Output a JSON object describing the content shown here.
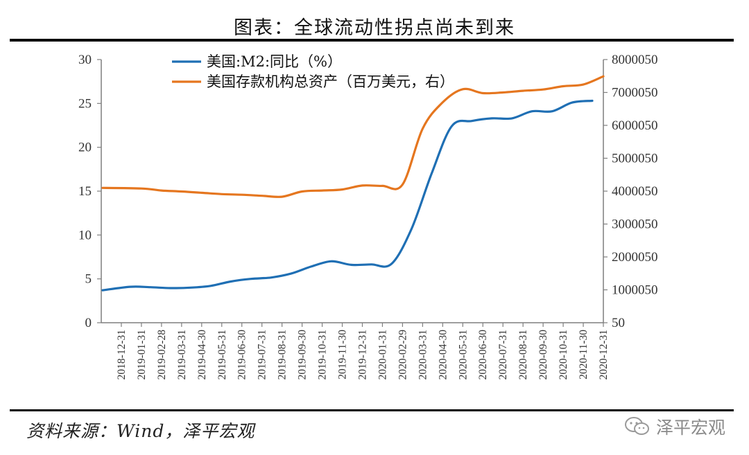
{
  "title": "图表：全球流动性拐点尚未到来",
  "source": "资料来源：Wind，泽平宏观",
  "brand": {
    "label": "泽平宏观",
    "icon": "wechat-icon"
  },
  "colors": {
    "m2": "#1f6fb4",
    "assets": "#e5761f",
    "axis": "#7f7f7f"
  },
  "chart_data": {
    "type": "line",
    "title": "全球流动性拐点尚未到来",
    "x": [
      "2018-12-31",
      "2019-01-31",
      "2019-02-28",
      "2019-03-31",
      "2019-04-30",
      "2019-05-31",
      "2019-06-30",
      "2019-07-31",
      "2019-08-31",
      "2019-09-30",
      "2019-10-31",
      "2019-11-30",
      "2019-12-31",
      "2020-01-31",
      "2020-02-29",
      "2020-03-31",
      "2020-04-30",
      "2020-05-31",
      "2020-06-30",
      "2020-07-31",
      "2020-08-31",
      "2020-09-30",
      "2020-10-31",
      "2020-11-30",
      "2020-12-31"
    ],
    "y_left": {
      "ylim": [
        0,
        30
      ],
      "ticks": [
        0,
        5,
        10,
        15,
        20,
        25,
        30
      ]
    },
    "y_right": {
      "ylim": [
        50,
        8000050
      ],
      "ticks": [
        50,
        1000050,
        2000050,
        3000050,
        4000050,
        5000050,
        6000050,
        7000050,
        8000050
      ]
    },
    "legend_position": "top-left",
    "grid": false,
    "series": [
      {
        "name": "美国:M2:同比（%）",
        "axis": "left",
        "color": "#1f6fb4",
        "values": [
          3.7,
          4.1,
          4.05,
          3.95,
          4.0,
          4.2,
          4.7,
          5.0,
          5.15,
          5.6,
          6.4,
          7.0,
          6.6,
          6.65,
          6.7,
          10.7,
          17.0,
          22.4,
          23.0,
          23.3,
          23.3,
          24.1,
          24.1,
          25.1,
          25.3
        ]
      },
      {
        "name": "美国存款机构总资产（百万美元，右）",
        "axis": "right",
        "color": "#e5761f",
        "values": [
          4100000,
          4080000,
          4020000,
          3990000,
          3950000,
          3910000,
          3890000,
          3860000,
          3830000,
          3990000,
          4020000,
          4050000,
          4170000,
          4160000,
          4200000,
          5900000,
          6700000,
          7100000,
          6980000,
          7000000,
          7050000,
          7090000,
          7190000,
          7240000,
          7490000
        ]
      }
    ]
  }
}
